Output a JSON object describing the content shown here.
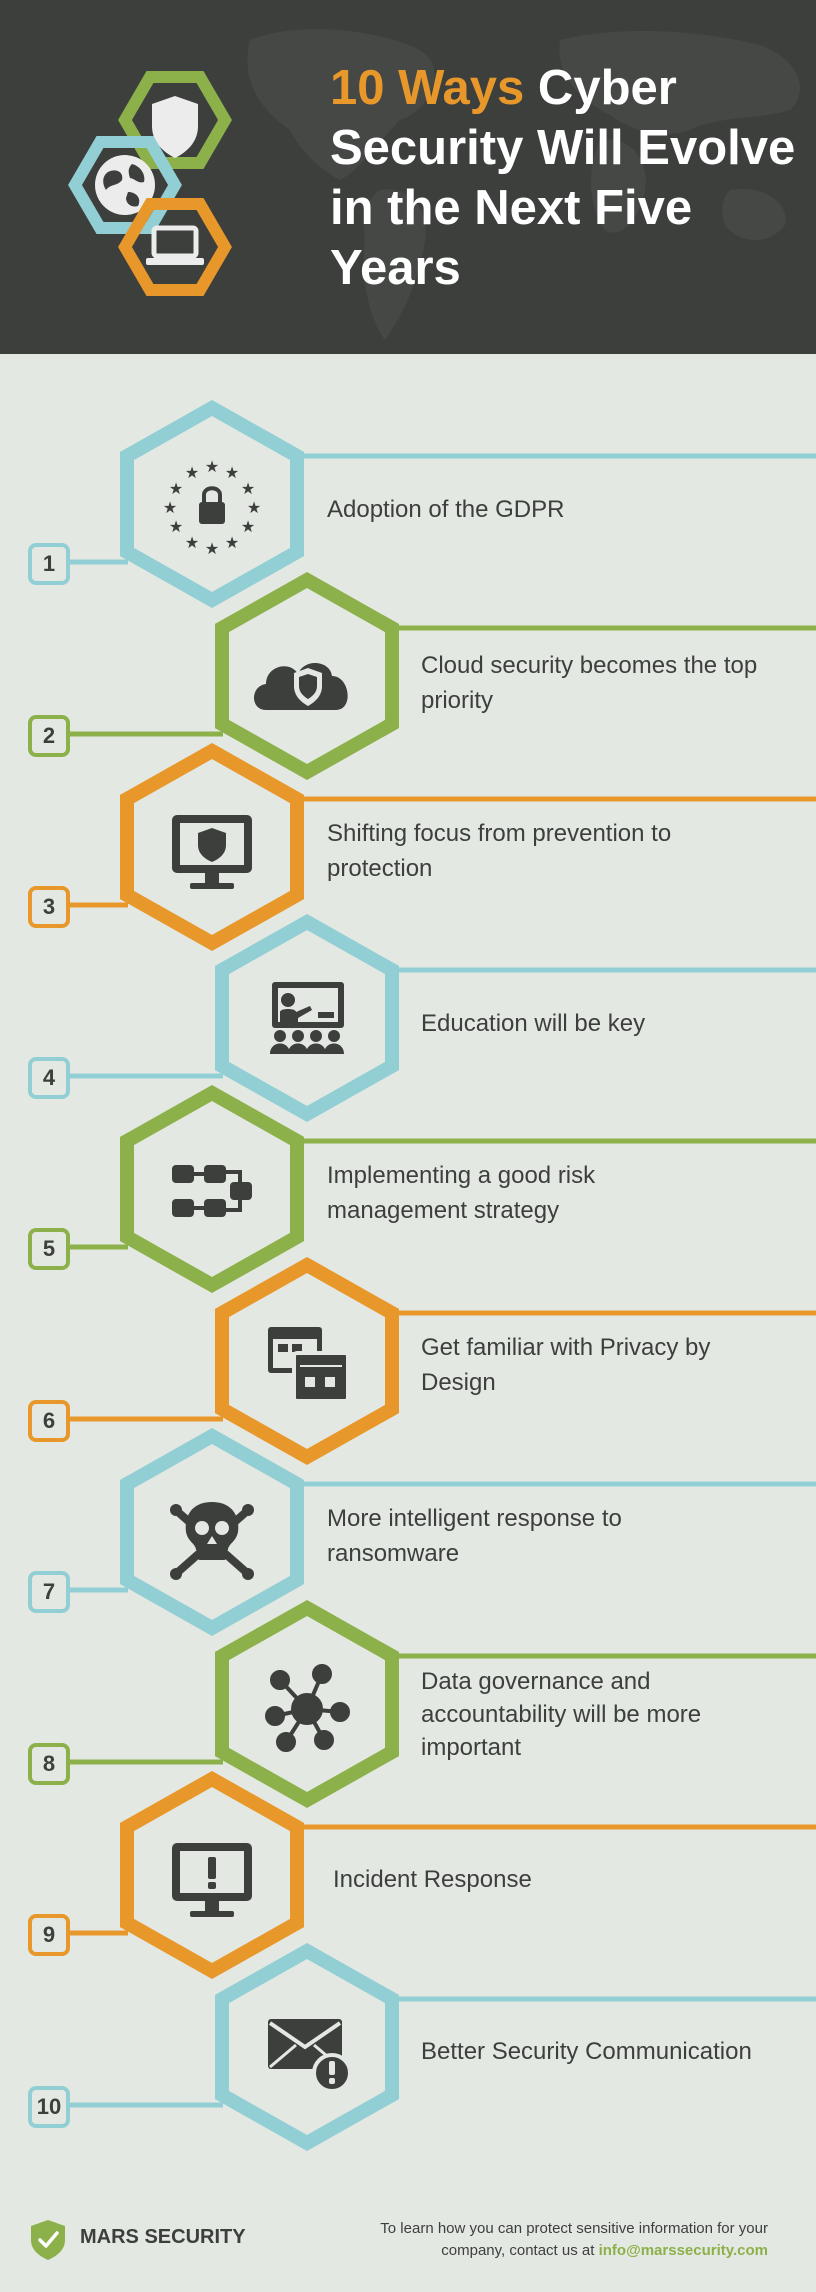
{
  "header": {
    "title_accent": "10 Ways",
    "title_rest": " Cyber Security Will Evolve in the Next Five Years",
    "icons": [
      "shield-icon",
      "globe-icon",
      "laptop-icon"
    ]
  },
  "colors": {
    "blue": "#92cfd4",
    "green": "#8db14a",
    "orange": "#e8982a",
    "dark": "#3d3f3d",
    "background": "#e4e8e3"
  },
  "items": [
    {
      "number": "1",
      "label": "Adoption of the GDPR",
      "icon": "eu-lock-icon",
      "color": "#92cfd4"
    },
    {
      "number": "2",
      "label": "Cloud security becomes the top priority",
      "icon": "cloud-shield-icon",
      "color": "#8db14a"
    },
    {
      "number": "3",
      "label": "Shifting focus from prevention to protection",
      "icon": "monitor-shield-icon",
      "color": "#e8982a"
    },
    {
      "number": "4",
      "label": "Education will be key",
      "icon": "classroom-icon",
      "color": "#92cfd4"
    },
    {
      "number": "5",
      "label": "Implementing a good risk management strategy",
      "icon": "flowchart-icon",
      "color": "#8db14a"
    },
    {
      "number": "6",
      "label": "Get familiar with Privacy by Design",
      "icon": "windows-icon",
      "color": "#e8982a"
    },
    {
      "number": "7",
      "label": "More intelligent response to ransomware",
      "icon": "skull-icon",
      "color": "#92cfd4"
    },
    {
      "number": "8",
      "label": "Data governance and accountability will be more important",
      "icon": "network-icon",
      "color": "#8db14a"
    },
    {
      "number": "9",
      "label": "Incident Response",
      "icon": "monitor-alert-icon",
      "color": "#e8982a"
    },
    {
      "number": "10",
      "label": "Better Security Communication",
      "icon": "envelope-alert-icon",
      "color": "#92cfd4"
    }
  ],
  "footer": {
    "brand": "MARS SECURITY",
    "contact_text": "To learn how you can protect sensitive information for your company, contact us at ",
    "email": "info@marssecurity.com"
  }
}
